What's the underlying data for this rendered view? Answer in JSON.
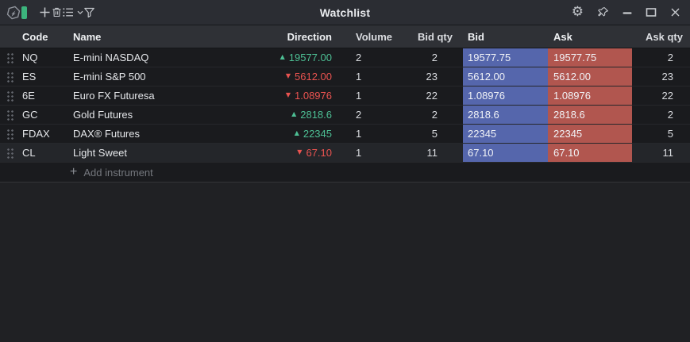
{
  "window": {
    "title": "Watchlist"
  },
  "toolbar": {
    "left_icons": [
      "app-logo-icon",
      "link-indicator",
      "add-icon",
      "trash-icon",
      "list-view-icon",
      "filter-icon"
    ],
    "right_icons": [
      "settings-gear-icon",
      "pin-icon",
      "minimize-icon",
      "maximize-icon",
      "close-icon"
    ]
  },
  "table": {
    "columns": [
      {
        "label": "Code"
      },
      {
        "label": "Name"
      },
      {
        "label": "Direction"
      },
      {
        "label": "Volume"
      },
      {
        "label": "Bid qty"
      },
      {
        "label": "Bid"
      },
      {
        "label": "Ask"
      },
      {
        "label": "Ask qty"
      }
    ],
    "rows": [
      {
        "code": "NQ",
        "name": "E-mini NASDAQ",
        "trend": "up",
        "last": "19577.00",
        "volume": "2",
        "bid_qty": "2",
        "bid": "19577.75",
        "ask": "19577.75",
        "ask_qty": "2",
        "highlighted": false
      },
      {
        "code": "ES",
        "name": "E-mini S&P 500",
        "trend": "down",
        "last": "5612.00",
        "volume": "1",
        "bid_qty": "23",
        "bid": "5612.00",
        "ask": "5612.00",
        "ask_qty": "23",
        "highlighted": false
      },
      {
        "code": "6E",
        "name": "Euro FX Futuresa",
        "trend": "down",
        "last": "1.08976",
        "volume": "1",
        "bid_qty": "22",
        "bid": "1.08976",
        "ask": "1.08976",
        "ask_qty": "22",
        "highlighted": false
      },
      {
        "code": "GC",
        "name": "Gold Futures",
        "trend": "up",
        "last": "2818.6",
        "volume": "2",
        "bid_qty": "2",
        "bid": "2818.6",
        "ask": "2818.6",
        "ask_qty": "2",
        "highlighted": false
      },
      {
        "code": "FDAX",
        "name": "DAX® Futures",
        "trend": "up",
        "last": "22345",
        "volume": "1",
        "bid_qty": "5",
        "bid": "22345",
        "ask": "22345",
        "ask_qty": "5",
        "highlighted": false
      },
      {
        "code": "CL",
        "name": "Light Sweet",
        "trend": "down",
        "last": "67.10",
        "volume": "1",
        "bid_qty": "11",
        "bid": "67.10",
        "ask": "67.10",
        "ask_qty": "11",
        "highlighted": true
      }
    ],
    "add_row_label": "Add instrument"
  },
  "glyphs": {
    "up_arrow": "▲",
    "down_arrow": "▼",
    "add_plus": "+"
  },
  "colors": {
    "up_green": "#4dbf94",
    "down_red": "#ea5350",
    "bid_cell_bg": "#5566ac",
    "ask_cell_bg": "#b1564f",
    "link_indicator_green": "#3cb57d"
  }
}
